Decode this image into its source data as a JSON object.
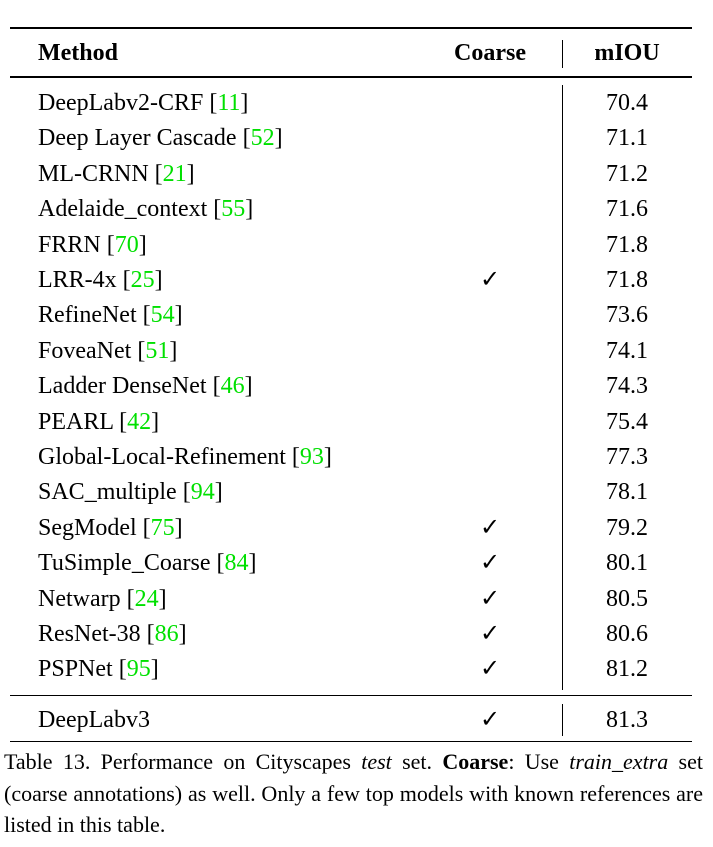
{
  "table": {
    "header": {
      "method": "Method",
      "coarse": "Coarse",
      "miou": "mIOU"
    },
    "rows": [
      {
        "method": "DeepLabv2-CRF",
        "ref": 11,
        "coarse": null,
        "miou": 70.4
      },
      {
        "method": "Deep Layer Cascade",
        "ref": 52,
        "coarse": null,
        "miou": 71.1
      },
      {
        "method": "ML-CRNN",
        "ref": 21,
        "coarse": null,
        "miou": 71.2
      },
      {
        "method": "Adelaide_context",
        "ref": 55,
        "coarse": null,
        "miou": 71.6
      },
      {
        "method": "FRRN",
        "ref": 70,
        "coarse": null,
        "miou": 71.8
      },
      {
        "method": "LRR-4x",
        "ref": 25,
        "coarse": "✓",
        "miou": 71.8
      },
      {
        "method": "RefineNet",
        "ref": 54,
        "coarse": null,
        "miou": 73.6
      },
      {
        "method": "FoveaNet",
        "ref": 51,
        "coarse": null,
        "miou": 74.1
      },
      {
        "method": "Ladder DenseNet",
        "ref": 46,
        "coarse": null,
        "miou": 74.3
      },
      {
        "method": "PEARL",
        "ref": 42,
        "coarse": null,
        "miou": 75.4
      },
      {
        "method": "Global-Local-Refinement",
        "ref": 93,
        "coarse": null,
        "miou": 77.3
      },
      {
        "method": "SAC_multiple",
        "ref": 94,
        "coarse": null,
        "miou": 78.1
      },
      {
        "method": "SegModel",
        "ref": 75,
        "coarse": "✓",
        "miou": 79.2
      },
      {
        "method": "TuSimple_Coarse",
        "ref": 84,
        "coarse": "✓",
        "miou": 80.1
      },
      {
        "method": "Netwarp",
        "ref": 24,
        "coarse": "✓",
        "miou": 80.5
      },
      {
        "method": "ResNet-38",
        "ref": 86,
        "coarse": "✓",
        "miou": 80.6
      },
      {
        "method": "PSPNet",
        "ref": 95,
        "coarse": "✓",
        "miou": 81.2
      }
    ],
    "final_row": {
      "method": "DeepLabv3",
      "coarse": "✓",
      "miou": 81.3
    }
  },
  "caption": [
    {
      "text": "Table 13. Performance on Cityscapes ",
      "style": "normal"
    },
    {
      "text": "test",
      "style": "italic"
    },
    {
      "text": " set. ",
      "style": "normal"
    },
    {
      "text": "Coarse",
      "style": "bold"
    },
    {
      "text": ": Use ",
      "style": "normal"
    },
    {
      "text": "train_extra",
      "style": "italic"
    },
    {
      "text": " set (coarse annotations) as well. Only a few top models with known references are listed in this table.",
      "style": "normal"
    }
  ]
}
